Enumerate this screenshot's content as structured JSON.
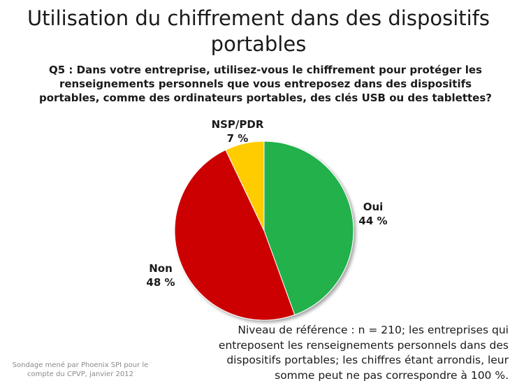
{
  "chart_data": {
    "type": "pie",
    "title": "Utilisation du chiffrement dans des dispositifs portables",
    "subtitle": "Q5 : Dans votre entreprise, utilisez-vous le chiffrement pour protéger les renseignements personnels que vous entreposez dans des dispositifs portables, comme des ordinateurs portables, des clés USB ou des tablettes?",
    "slices": [
      {
        "label": "Oui",
        "value": 44,
        "value_label": "44  %",
        "color": "#22b14c"
      },
      {
        "label": "Non",
        "value": 48,
        "value_label": "48  %",
        "color": "#cc0000"
      },
      {
        "label": "NSP/PDR",
        "value": 7,
        "value_label": "7  %",
        "color": "#ffcc00"
      }
    ],
    "start_angle_deg": 0,
    "direction": "clockwise",
    "legend": "none"
  },
  "note": "Niveau de référence : n = 210; les entreprises qui entreposent les renseignements personnels dans des dispositifs portables; les chiffres étant arrondis, leur somme peut ne pas correspondre à 100 %.",
  "source": "Sondage mené par Phoenix SPI pour le compte du CPVP, janvier 2012"
}
